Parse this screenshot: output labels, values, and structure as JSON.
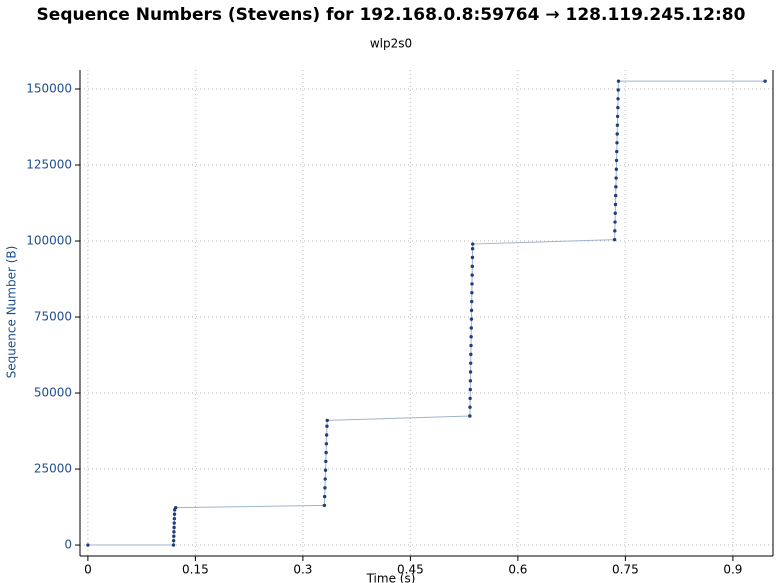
{
  "chart_data": {
    "type": "scatter",
    "title": "Sequence Numbers (Stevens) for 192.168.0.8:59764 → 128.119.245.12:80",
    "subtitle": "wlp2s0",
    "x_label": "Time (s)",
    "y_label": "Sequence Number (B)",
    "xlim": [
      -0.011,
      0.956
    ],
    "ylim": [
      -3600,
      156250
    ],
    "xticks": [
      0,
      0.15,
      0.3,
      0.45,
      0.6,
      0.75,
      0.9
    ],
    "yticks": [
      0,
      25000,
      50000,
      75000,
      100000,
      125000,
      150000
    ],
    "grid": true,
    "series": [
      {
        "color": "#1f3f7a",
        "line_color": "#9fb3cc",
        "x": [
          0,
          0.1195,
          0.1197,
          0.1199,
          0.1201,
          0.1203,
          0.1205,
          0.1207,
          0.1209,
          0.1211,
          0.1225,
          0.33,
          0.3304,
          0.3308,
          0.3312,
          0.3316,
          0.332,
          0.3324,
          0.3328,
          0.3332,
          0.3336,
          0.334,
          0.533,
          0.5332,
          0.5334,
          0.5336,
          0.5338,
          0.534,
          0.5342,
          0.5344,
          0.5346,
          0.5348,
          0.535,
          0.5352,
          0.5354,
          0.5356,
          0.5358,
          0.536,
          0.5362,
          0.5364,
          0.5366,
          0.5368,
          0.537,
          0.735,
          0.7353,
          0.7356,
          0.7359,
          0.7362,
          0.7365,
          0.7368,
          0.7371,
          0.7374,
          0.7377,
          0.738,
          0.7383,
          0.7386,
          0.7389,
          0.7392,
          0.7395,
          0.7398,
          0.7401,
          0.7404,
          0.945
        ],
        "values": [
          0,
          0,
          1448,
          2896,
          4344,
          5792,
          7240,
          8688,
          10136,
          11584,
          12300,
          13032,
          15928,
          18824,
          21720,
          24616,
          27512,
          30408,
          33304,
          36200,
          39096,
          41000,
          42448,
          45344,
          48240,
          51136,
          54032,
          56928,
          59824,
          62720,
          65616,
          68512,
          71408,
          74304,
          77200,
          80096,
          82992,
          85888,
          88784,
          91680,
          94576,
          97472,
          99000,
          100448,
          103344,
          106240,
          109136,
          112032,
          114928,
          117824,
          120720,
          123616,
          126512,
          129408,
          132304,
          135200,
          138096,
          140992,
          143888,
          146784,
          149680,
          152576,
          152576
        ]
      }
    ]
  }
}
